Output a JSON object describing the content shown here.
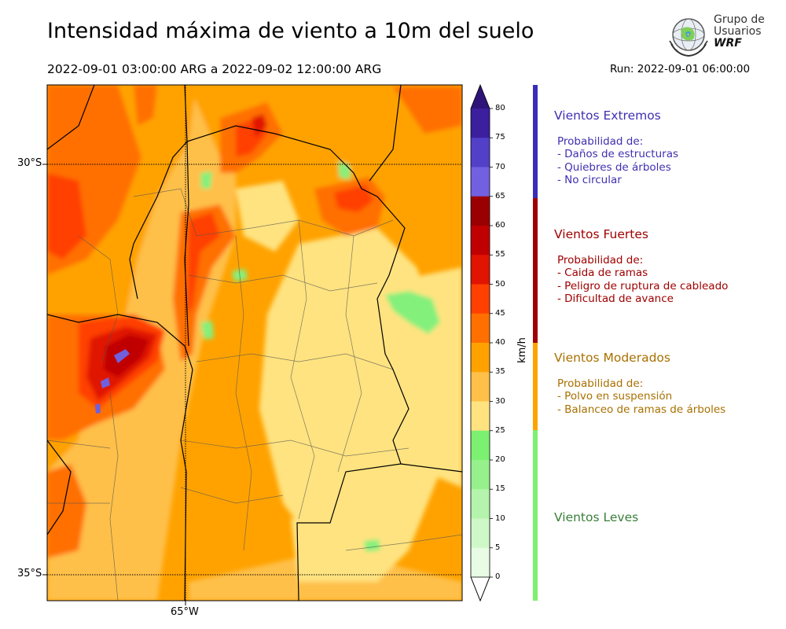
{
  "title": "Intensidad máxima de viento a 10m del suelo",
  "period": "2022-09-01 03:00:00 ARG  a  2022-09-02 12:00:00 ARG",
  "run": "Run: 2022-09-01 06:00:00",
  "logo": {
    "line1": "Grupo de",
    "line2": "Usuarios",
    "line3": "WRF"
  },
  "map": {
    "lat_labels": [
      "30°S",
      "35°S"
    ],
    "lon_labels": [
      "65°W"
    ],
    "colors": {
      "c20": "#ffffff",
      "c25": "#84f07c",
      "c30": "#ffe380",
      "c35": "#ffc04a",
      "c40": "#ffa200",
      "c45": "#ff7000",
      "c50": "#ff4000",
      "c55": "#e01400",
      "c60": "#c00000",
      "c65": "#9b0000",
      "c70": "#7060dd"
    }
  },
  "colorbar": {
    "unit": "km/h",
    "ticks": [
      "80",
      "75",
      "70",
      "65",
      "60",
      "55",
      "50",
      "45",
      "40",
      "35",
      "30",
      "25",
      "20",
      "15",
      "10",
      "5",
      "0"
    ],
    "colors": [
      "#3b1f9e",
      "#5240c8",
      "#7360e0",
      "#9b0000",
      "#c00000",
      "#e01400",
      "#ff4000",
      "#ff7000",
      "#ffa200",
      "#ffc04a",
      "#ffe380",
      "#7cf070",
      "#96f08c",
      "#b4f4ac",
      "#cff8c8",
      "#e8fbe4"
    ]
  },
  "categories": [
    {
      "title": "Vientos Extremos",
      "color": "#3f2fb0",
      "lines": [
        "Probabilidad de:",
        "- Daños de estructuras",
        "- Quiebres de árboles",
        "- No circular"
      ]
    },
    {
      "title": "Vientos Fuertes",
      "color": "#a00000",
      "lines": [
        "Probabilidad de:",
        "- Caida de ramas",
        "- Peligro de ruptura de cableado",
        "- Dificultad de avance"
      ]
    },
    {
      "title": "Vientos Moderados",
      "color": "#a97000",
      "lines": [
        "Probabilidad de:",
        "- Polvo en suspensión",
        "- Balanceo de ramas de árboles"
      ]
    },
    {
      "title": "Vientos Leves",
      "color": "#3a7f3a",
      "lines": []
    }
  ],
  "category_bar_colors": [
    "#3b2db8",
    "#a00000",
    "#ffa200",
    "#7cf070"
  ]
}
